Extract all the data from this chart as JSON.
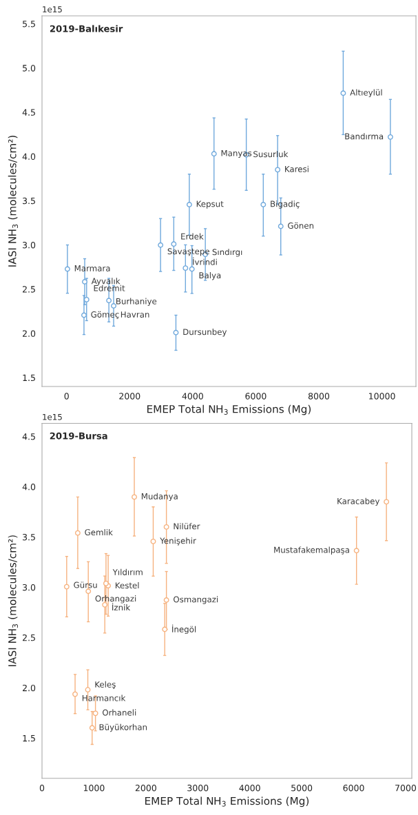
{
  "chart_data": [
    {
      "type": "scatter",
      "title": "2019-Balıkesir",
      "xlabel": "EMEP Total NH$_{3}$ Emissions (Mg)",
      "ylabel": "IASI NH$_{3}$ (molecules/cm²)",
      "color": "#6fa8dc",
      "marker": "circle",
      "grid": false,
      "x": [
        8773,
        10269,
        4675,
        5699,
        6693,
        3892,
        6238,
        6793,
        3399,
        2980,
        3770,
        3975,
        4400,
        26,
        574,
        634,
        1341,
        1492,
        551,
        3467
      ],
      "values": [
        4.715,
        4.22,
        4.03,
        4.018,
        3.85,
        3.456,
        3.456,
        3.21,
        3.01,
        2.998,
        2.738,
        2.728,
        2.893,
        2.728,
        2.584,
        2.382,
        2.371,
        2.311,
        2.206,
        2.009
      ],
      "errors": [
        [
          4.247,
          5.19
        ],
        [
          3.8,
          4.645
        ],
        [
          3.63,
          4.436
        ],
        [
          3.617,
          4.423
        ],
        [
          3.46,
          4.236
        ],
        [
          3.11,
          3.8
        ],
        [
          3.1,
          3.8
        ],
        [
          2.887,
          3.531
        ],
        [
          2.712,
          3.314
        ],
        [
          2.7,
          3.298
        ],
        [
          2.468,
          3.001
        ],
        [
          2.452,
          2.992
        ],
        [
          2.6,
          3.184
        ],
        [
          2.454,
          3.0
        ],
        [
          2.324,
          2.844
        ],
        [
          2.144,
          2.622
        ],
        [
          2.13,
          2.622
        ],
        [
          2.082,
          2.541
        ],
        [
          1.987,
          2.428
        ],
        [
          1.809,
          2.206
        ]
      ],
      "xlim": [
        -780,
        11080
      ],
      "ylim": [
        1.4,
        5.59
      ],
      "xticks": [
        0,
        2000,
        4000,
        6000,
        8000,
        10000
      ],
      "yticks": [
        1.5,
        {
          "value": 2,
          "label": "2.0"
        },
        2.5,
        {
          "value": 3,
          "label": "3.0"
        },
        3.5,
        {
          "value": 4,
          "label": "4.0"
        },
        4.5,
        {
          "value": 5,
          "label": "5.0"
        },
        5.5
      ],
      "annotations": [
        "1e15",
        {
          "text": "Altıeylül",
          "x": 8773,
          "y": 4.715
        },
        {
          "text": "Bandırma",
          "x": 10269,
          "y": 4.22
        },
        {
          "text": "Manyas",
          "x": 4675,
          "y": 4.03
        },
        {
          "text": "Susurluk",
          "x": 5699,
          "y": 4.018
        },
        {
          "text": "Karesi",
          "x": 6693,
          "y": 3.85
        },
        {
          "text": "Kepsut",
          "x": 3892,
          "y": 3.456
        },
        {
          "text": "Bigadiç",
          "x": 6238,
          "y": 3.456
        },
        {
          "text": "Gönen",
          "x": 6793,
          "y": 3.21
        },
        {
          "text": "Erdek",
          "x": 3399,
          "y": 3.01
        },
        {
          "text": "Savaştepe",
          "x": 2980,
          "y": 2.998
        },
        {
          "text": "İvrindi",
          "x": 3770,
          "y": 2.738
        },
        {
          "text": "Balya",
          "x": 3975,
          "y": 2.728
        },
        {
          "text": "Sındırgı",
          "x": 4400,
          "y": 2.893
        },
        {
          "text": "Marmara",
          "x": 26,
          "y": 2.728
        },
        {
          "text": "Burhaniye",
          "x": 1341,
          "y": 2.371
        },
        {
          "text": "Ayvalık",
          "x": 574,
          "y": 2.584
        },
        {
          "text": "Edremit",
          "x": 634,
          "y": 2.382
        },
        {
          "text": "Havran",
          "x": 1492,
          "y": 2.311
        },
        {
          "text": "Gömeç",
          "x": 551,
          "y": 2.206
        },
        {
          "text": "Dursunbey",
          "x": 3467,
          "y": 2.009
        }
      ]
    },
    {
      "type": "scatter",
      "title": "2019-Bursa",
      "xlabel": "EMEP Total NH$_{3}$ Emissions (Mg)",
      "ylabel": "IASI NH$_{3}$ (molecules/cm²)",
      "color": "#f6b27f",
      "marker": "circle",
      "grid": false,
      "x": [
        6631,
        6055,
        1777,
        2141,
        2395,
        688,
        1274,
        1232,
        891,
        475,
        1209,
        2395,
        2363,
        637,
        882,
        1029,
        965
      ],
      "values": [
        3.85,
        3.365,
        3.898,
        3.456,
        3.6,
        3.54,
        3.015,
        3.038,
        2.96,
        3.006,
        2.826,
        2.873,
        2.582,
        1.937,
        1.981,
        1.747,
        1.602
      ],
      "errors": [
        [
          3.464,
          4.237
        ],
        [
          3.03,
          3.699
        ],
        [
          3.51,
          4.29
        ],
        [
          3.111,
          3.8
        ],
        [
          3.238,
          3.96
        ],
        [
          3.187,
          3.898
        ],
        [
          2.713,
          3.317
        ],
        [
          2.732,
          3.335
        ],
        [
          2.657,
          3.254
        ],
        [
          2.706,
          3.307
        ],
        [
          2.545,
          3.112
        ],
        [
          2.582,
          3.157
        ],
        [
          2.322,
          2.84
        ],
        [
          1.744,
          2.133
        ],
        [
          1.781,
          2.179
        ],
        [
          1.572,
          1.92
        ],
        [
          1.438,
          1.765
        ]
      ],
      "xlim": [
        0,
        7120
      ],
      "ylim": [
        1.1,
        4.63
      ],
      "xticks": [
        0,
        1000,
        2000,
        3000,
        4000,
        5000,
        6000,
        7000
      ],
      "yticks": [
        1.5,
        {
          "value": 2,
          "label": "2.0"
        },
        2.5,
        {
          "value": 3,
          "label": "3.0"
        },
        3.5,
        {
          "value": 4,
          "label": "4.0"
        },
        4.5
      ],
      "annotations": [
        "1e15",
        {
          "text": "Karacabey",
          "x": 6631,
          "y": 3.85
        },
        {
          "text": "Mustafakemalpaşa",
          "x": 6055,
          "y": 3.365
        },
        {
          "text": "Mudanya",
          "x": 1777,
          "y": 3.898
        },
        {
          "text": "Yenişehir",
          "x": 2141,
          "y": 3.456
        },
        {
          "text": "Nilüfer",
          "x": 2395,
          "y": 3.6
        },
        {
          "text": "Gemlik",
          "x": 688,
          "y": 3.54
        },
        {
          "text": "Kestel",
          "x": 1274,
          "y": 3.015
        },
        {
          "text": "Yıldırım",
          "x": 1232,
          "y": 3.038
        },
        {
          "text": "Orhangazi",
          "x": 891,
          "y": 2.96
        },
        {
          "text": "Gürsu",
          "x": 475,
          "y": 3.006
        },
        {
          "text": "İznik",
          "x": 1209,
          "y": 2.826
        },
        {
          "text": "Osmangazi",
          "x": 2395,
          "y": 2.873
        },
        {
          "text": "İnegöl",
          "x": 2363,
          "y": 2.582
        },
        {
          "text": "Harmancık",
          "x": 637,
          "y": 1.937
        },
        {
          "text": "Keleş",
          "x": 882,
          "y": 1.981
        },
        {
          "text": "Orhaneli",
          "x": 1029,
          "y": 1.747
        },
        {
          "text": "Büyükorhan",
          "x": 965,
          "y": 1.602
        }
      ]
    }
  ]
}
